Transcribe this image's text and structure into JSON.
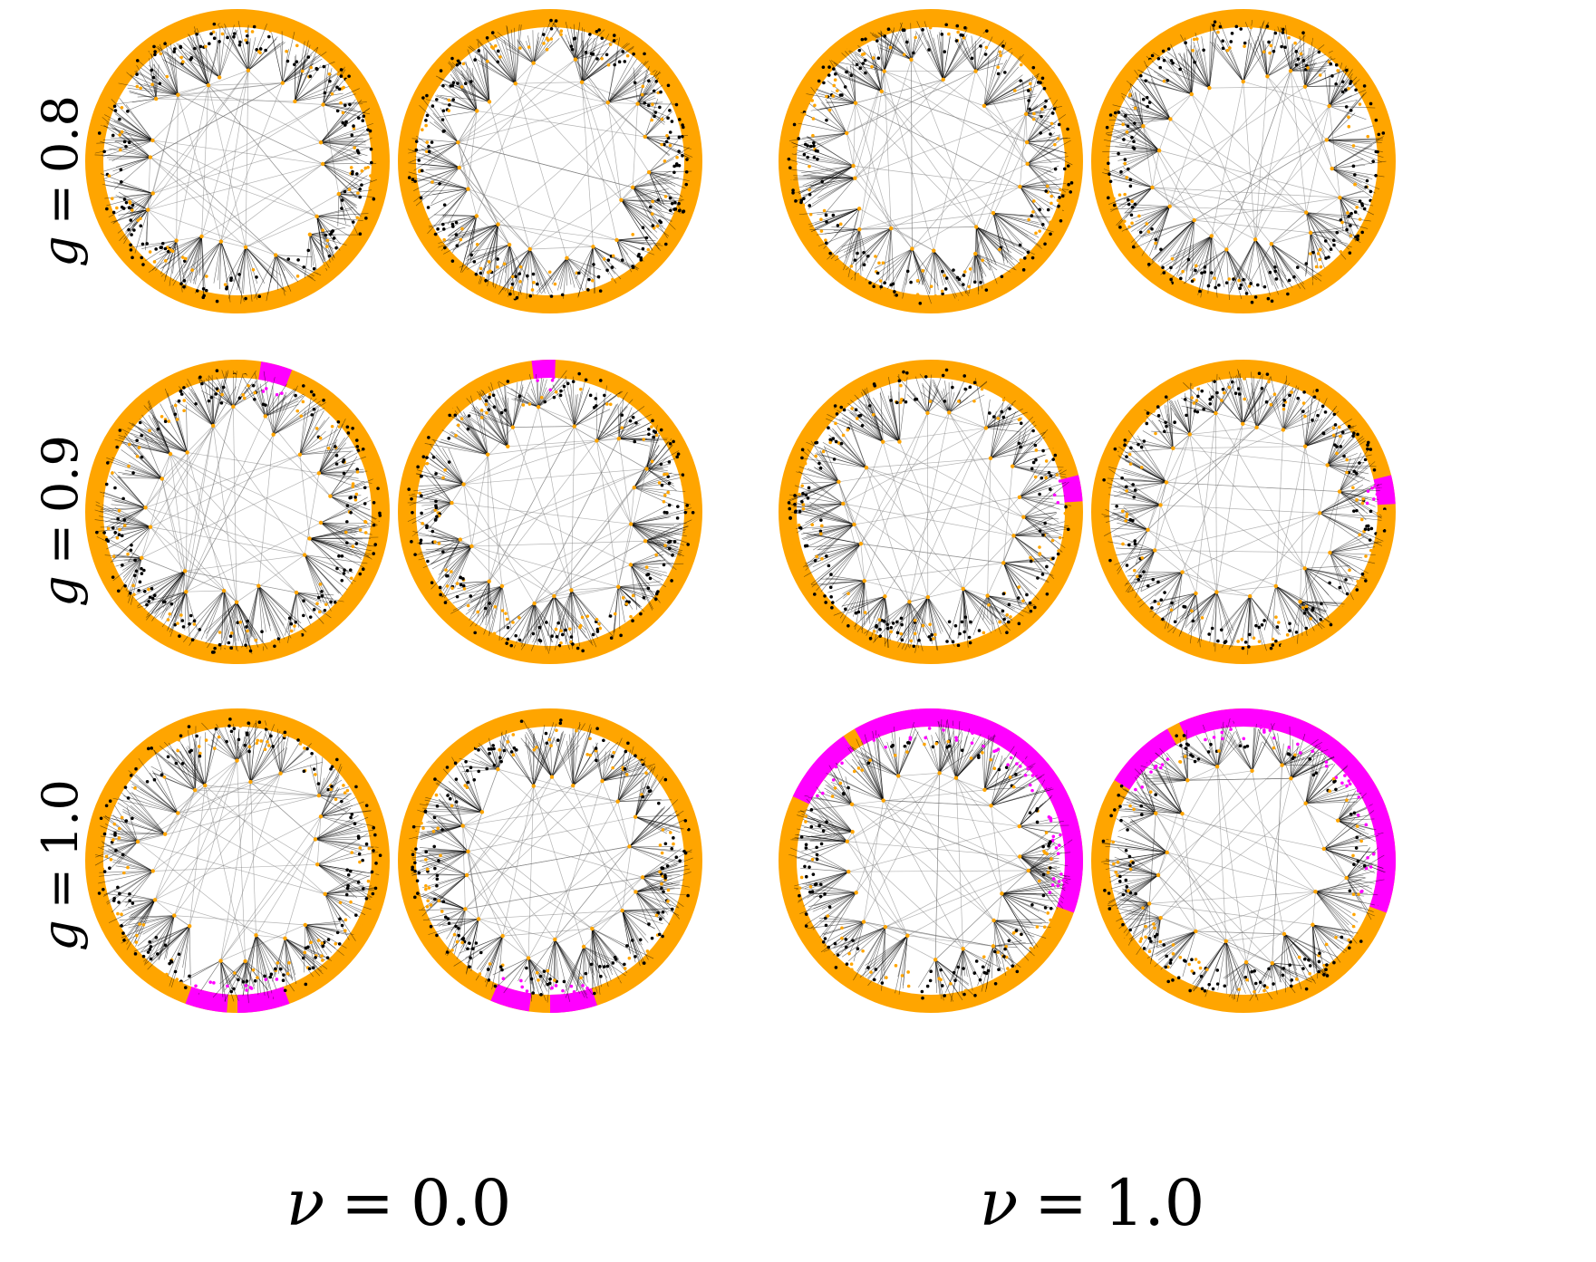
{
  "row_labels": [
    {
      "var": "g",
      "op": "=",
      "val": "0.8"
    },
    {
      "var": "g",
      "op": "=",
      "val": "0.9"
    },
    {
      "var": "g",
      "op": "=",
      "val": "1.0"
    }
  ],
  "column_labels": [
    {
      "var": "ν",
      "op": "=",
      "val": "0.0"
    },
    {
      "var": "ν",
      "op": "=",
      "val": "1.0"
    }
  ],
  "colors": {
    "node": "#FFA500",
    "highlight": "#FF00FF",
    "edge": "#000000",
    "background": "#FFFFFF"
  },
  "panels": [
    {
      "row": 0,
      "col": 0,
      "highlight_arcs": []
    },
    {
      "row": 0,
      "col": 1,
      "highlight_arcs": []
    },
    {
      "row": 0,
      "col": 2,
      "highlight_arcs": []
    },
    {
      "row": 0,
      "col": 3,
      "highlight_arcs": []
    },
    {
      "row": 1,
      "col": 0,
      "highlight_arcs": [
        [
          -81,
          -69
        ]
      ]
    },
    {
      "row": 1,
      "col": 1,
      "highlight_arcs": [
        [
          -97,
          -88
        ]
      ]
    },
    {
      "row": 1,
      "col": 2,
      "highlight_arcs": [
        [
          -14,
          -4
        ]
      ]
    },
    {
      "row": 1,
      "col": 3,
      "highlight_arcs": [
        [
          -14,
          -3
        ]
      ]
    },
    {
      "row": 2,
      "col": 0,
      "highlight_arcs": [
        [
          94,
          110
        ],
        [
          70,
          90
        ]
      ]
    },
    {
      "row": 2,
      "col": 1,
      "highlight_arcs": [
        [
          98,
          113
        ],
        [
          72,
          90
        ]
      ]
    },
    {
      "row": 2,
      "col": 2,
      "highlight_arcs": [
        [
          -155,
          -125
        ],
        [
          -120,
          20
        ]
      ]
    },
    {
      "row": 2,
      "col": 3,
      "highlight_arcs": [
        [
          -148,
          -120
        ],
        [
          -115,
          20
        ]
      ]
    }
  ]
}
